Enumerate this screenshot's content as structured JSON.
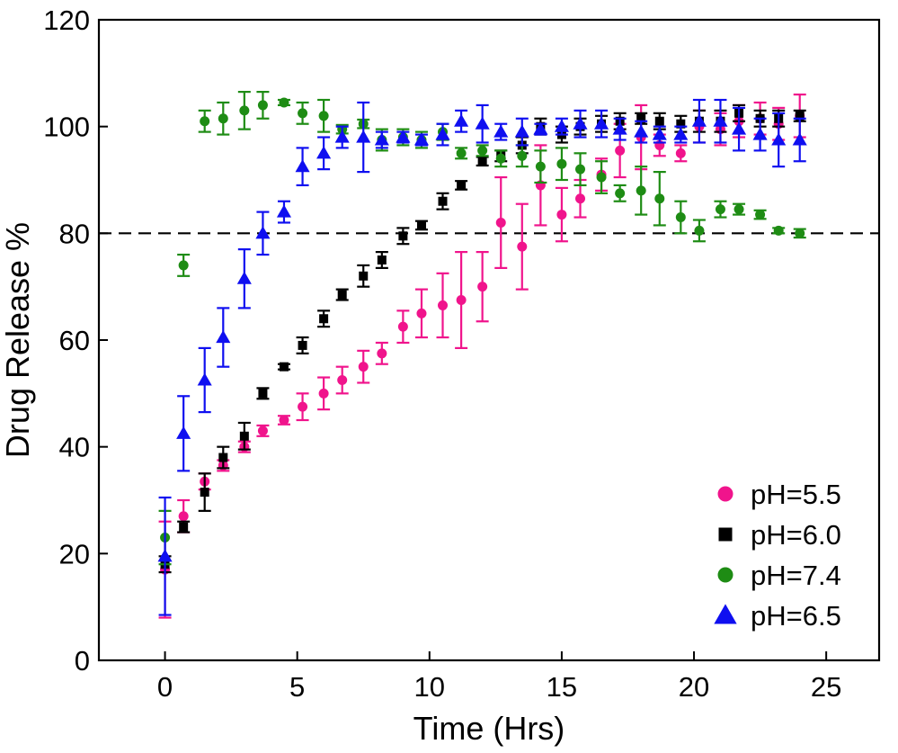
{
  "chart_data": {
    "type": "scatter",
    "xlabel": "Time (Hrs)",
    "ylabel": "Drug Release %",
    "xlim": [
      -2.5,
      27
    ],
    "ylim": [
      0,
      120
    ],
    "xticks": [
      0,
      5,
      10,
      15,
      20,
      25
    ],
    "yticks": [
      0,
      20,
      40,
      60,
      80,
      100,
      120
    ],
    "reference_line": {
      "y": 80,
      "style": "dashed",
      "color": "#000000"
    },
    "grid": false,
    "legend_position": "bottom-right",
    "series": [
      {
        "name": "pH=5.5",
        "marker": "circle",
        "color": "#f0148c",
        "points": [
          {
            "x": 0,
            "y": 17,
            "err": 9
          },
          {
            "x": 0.7,
            "y": 27,
            "err": 3
          },
          {
            "x": 1.5,
            "y": 33.5,
            "err": 1.5
          },
          {
            "x": 2.2,
            "y": 36.5,
            "err": 1
          },
          {
            "x": 3,
            "y": 40,
            "err": 1
          },
          {
            "x": 3.7,
            "y": 43,
            "err": 1
          },
          {
            "x": 4.5,
            "y": 45,
            "err": 0.8
          },
          {
            "x": 5.2,
            "y": 47.5,
            "err": 2.5
          },
          {
            "x": 6,
            "y": 50,
            "err": 3
          },
          {
            "x": 6.7,
            "y": 52.5,
            "err": 2.5
          },
          {
            "x": 7.5,
            "y": 55,
            "err": 3
          },
          {
            "x": 8.2,
            "y": 57.5,
            "err": 2
          },
          {
            "x": 9,
            "y": 62.5,
            "err": 3
          },
          {
            "x": 9.7,
            "y": 65,
            "err": 4.5
          },
          {
            "x": 10.5,
            "y": 66.5,
            "err": 6
          },
          {
            "x": 11.2,
            "y": 67.5,
            "err": 9
          },
          {
            "x": 12,
            "y": 70,
            "err": 6.5
          },
          {
            "x": 12.7,
            "y": 82,
            "err": 8.5
          },
          {
            "x": 13.5,
            "y": 77.5,
            "err": 8
          },
          {
            "x": 14.2,
            "y": 89,
            "err": 7.5
          },
          {
            "x": 15,
            "y": 83.5,
            "err": 5
          },
          {
            "x": 15.7,
            "y": 86.5,
            "err": 3.5
          },
          {
            "x": 16.5,
            "y": 91,
            "err": 3
          },
          {
            "x": 17.2,
            "y": 95.5,
            "err": 5
          },
          {
            "x": 18,
            "y": 98,
            "err": 6
          },
          {
            "x": 18.7,
            "y": 96.5,
            "err": 2
          },
          {
            "x": 19.5,
            "y": 95,
            "err": 1.5
          },
          {
            "x": 20.2,
            "y": 100,
            "err": 3
          },
          {
            "x": 21,
            "y": 99.5,
            "err": 3
          },
          {
            "x": 21.7,
            "y": 101,
            "err": 3
          },
          {
            "x": 22.5,
            "y": 101.5,
            "err": 3
          },
          {
            "x": 23.2,
            "y": 100.5,
            "err": 3
          },
          {
            "x": 24,
            "y": 102,
            "err": 4
          }
        ]
      },
      {
        "name": "pH=6.0",
        "marker": "square",
        "color": "#000000",
        "points": [
          {
            "x": 0,
            "y": 18,
            "err": 1.5
          },
          {
            "x": 0.7,
            "y": 25,
            "err": 1
          },
          {
            "x": 1.5,
            "y": 31.5,
            "err": 3.5
          },
          {
            "x": 2.2,
            "y": 38,
            "err": 2
          },
          {
            "x": 3,
            "y": 42,
            "err": 2.5
          },
          {
            "x": 3.7,
            "y": 50,
            "err": 1
          },
          {
            "x": 4.5,
            "y": 55,
            "err": 0.5
          },
          {
            "x": 5.2,
            "y": 59,
            "err": 1.5
          },
          {
            "x": 6,
            "y": 64,
            "err": 1.5
          },
          {
            "x": 6.7,
            "y": 68.5,
            "err": 1
          },
          {
            "x": 7.5,
            "y": 72,
            "err": 2
          },
          {
            "x": 8.2,
            "y": 75,
            "err": 1.5
          },
          {
            "x": 9,
            "y": 79.5,
            "err": 1.5
          },
          {
            "x": 9.7,
            "y": 81.5,
            "err": 0.8
          },
          {
            "x": 10.5,
            "y": 86,
            "err": 1.5
          },
          {
            "x": 11.2,
            "y": 89,
            "err": 0.8
          },
          {
            "x": 12,
            "y": 93.5,
            "err": 0.8
          },
          {
            "x": 12.7,
            "y": 94.5,
            "err": 1
          },
          {
            "x": 13.5,
            "y": 96.5,
            "err": 1.5
          },
          {
            "x": 14.2,
            "y": 100,
            "err": 1.5
          },
          {
            "x": 15,
            "y": 98.5,
            "err": 1.5
          },
          {
            "x": 15.7,
            "y": 100,
            "err": 1.5
          },
          {
            "x": 16.5,
            "y": 100.5,
            "err": 1.5
          },
          {
            "x": 17.2,
            "y": 101,
            "err": 1.5
          },
          {
            "x": 18,
            "y": 101.5,
            "err": 1
          },
          {
            "x": 18.7,
            "y": 101,
            "err": 1.5
          },
          {
            "x": 19.5,
            "y": 100.5,
            "err": 1.5
          },
          {
            "x": 20.2,
            "y": 101,
            "err": 2
          },
          {
            "x": 21,
            "y": 101,
            "err": 2
          },
          {
            "x": 21.7,
            "y": 102.5,
            "err": 1.5
          },
          {
            "x": 22.5,
            "y": 101.5,
            "err": 1.5
          },
          {
            "x": 23.2,
            "y": 101.5,
            "err": 1.5
          },
          {
            "x": 24,
            "y": 102,
            "err": 1
          }
        ]
      },
      {
        "name": "pH=7.4",
        "marker": "circle",
        "color": "#1e8c14",
        "points": [
          {
            "x": 0,
            "y": 23,
            "err": 5
          },
          {
            "x": 0.7,
            "y": 74,
            "err": 2
          },
          {
            "x": 1.5,
            "y": 101,
            "err": 2
          },
          {
            "x": 2.2,
            "y": 101.5,
            "err": 3
          },
          {
            "x": 3,
            "y": 103,
            "err": 3.5
          },
          {
            "x": 3.7,
            "y": 104,
            "err": 2.5
          },
          {
            "x": 4.5,
            "y": 104.5,
            "err": 0.5
          },
          {
            "x": 5.2,
            "y": 102.5,
            "err": 2
          },
          {
            "x": 6,
            "y": 102,
            "err": 3
          },
          {
            "x": 6.7,
            "y": 99.5,
            "err": 0.8
          },
          {
            "x": 7.5,
            "y": 100.5,
            "err": 0.8
          },
          {
            "x": 8.2,
            "y": 97.5,
            "err": 2
          },
          {
            "x": 9,
            "y": 98,
            "err": 1.5
          },
          {
            "x": 9.7,
            "y": 97.5,
            "err": 1.5
          },
          {
            "x": 10.5,
            "y": 99,
            "err": 1.5
          },
          {
            "x": 11.2,
            "y": 95,
            "err": 1
          },
          {
            "x": 12,
            "y": 95.5,
            "err": 1
          },
          {
            "x": 12.7,
            "y": 94,
            "err": 1.5
          },
          {
            "x": 13.5,
            "y": 94.5,
            "err": 2
          },
          {
            "x": 14.2,
            "y": 92.5,
            "err": 3
          },
          {
            "x": 15,
            "y": 93,
            "err": 3
          },
          {
            "x": 15.7,
            "y": 92,
            "err": 3
          },
          {
            "x": 16.5,
            "y": 90.5,
            "err": 3
          },
          {
            "x": 17.2,
            "y": 87.5,
            "err": 1.5
          },
          {
            "x": 18,
            "y": 88,
            "err": 4.5
          },
          {
            "x": 18.7,
            "y": 86.5,
            "err": 5
          },
          {
            "x": 19.5,
            "y": 83,
            "err": 3
          },
          {
            "x": 20.2,
            "y": 80.5,
            "err": 2
          },
          {
            "x": 21,
            "y": 84.5,
            "err": 1.5
          },
          {
            "x": 21.7,
            "y": 84.5,
            "err": 1
          },
          {
            "x": 22.5,
            "y": 83.5,
            "err": 0.8
          },
          {
            "x": 23.2,
            "y": 80.5,
            "err": 0.5
          },
          {
            "x": 24,
            "y": 80,
            "err": 0.8
          }
        ]
      },
      {
        "name": "pH=6.5",
        "marker": "triangle",
        "color": "#0f0ff0",
        "points": [
          {
            "x": 0,
            "y": 19.5,
            "err": 11
          },
          {
            "x": 0.7,
            "y": 42.5,
            "err": 7
          },
          {
            "x": 1.5,
            "y": 52.5,
            "err": 6
          },
          {
            "x": 2.2,
            "y": 60.5,
            "err": 5.5
          },
          {
            "x": 3,
            "y": 71.5,
            "err": 5.5
          },
          {
            "x": 3.7,
            "y": 80,
            "err": 4
          },
          {
            "x": 4.5,
            "y": 84,
            "err": 2
          },
          {
            "x": 5.2,
            "y": 92.5,
            "err": 3.5
          },
          {
            "x": 6,
            "y": 95,
            "err": 3
          },
          {
            "x": 6.7,
            "y": 98,
            "err": 2
          },
          {
            "x": 7.5,
            "y": 98,
            "err": 6.5
          },
          {
            "x": 8.2,
            "y": 97.5,
            "err": 1.5
          },
          {
            "x": 9,
            "y": 98,
            "err": 1
          },
          {
            "x": 9.7,
            "y": 97.5,
            "err": 1
          },
          {
            "x": 10.5,
            "y": 98.5,
            "err": 2
          },
          {
            "x": 11.2,
            "y": 101,
            "err": 2
          },
          {
            "x": 12,
            "y": 100.5,
            "err": 3.5
          },
          {
            "x": 12.7,
            "y": 99,
            "err": 1.5
          },
          {
            "x": 13.5,
            "y": 99,
            "err": 2.5
          },
          {
            "x": 14.2,
            "y": 99.5,
            "err": 1
          },
          {
            "x": 15,
            "y": 100,
            "err": 1.5
          },
          {
            "x": 15.7,
            "y": 100.5,
            "err": 2.5
          },
          {
            "x": 16.5,
            "y": 100.5,
            "err": 2.5
          },
          {
            "x": 17.2,
            "y": 99.5,
            "err": 2
          },
          {
            "x": 18,
            "y": 99,
            "err": 2
          },
          {
            "x": 18.7,
            "y": 98.5,
            "err": 1.5
          },
          {
            "x": 19.5,
            "y": 98.5,
            "err": 1.5
          },
          {
            "x": 20.2,
            "y": 101,
            "err": 4
          },
          {
            "x": 21,
            "y": 101,
            "err": 4
          },
          {
            "x": 21.7,
            "y": 99.5,
            "err": 4
          },
          {
            "x": 22.5,
            "y": 98.5,
            "err": 3
          },
          {
            "x": 23.2,
            "y": 97.5,
            "err": 5
          },
          {
            "x": 24,
            "y": 97.5,
            "err": 4
          }
        ]
      }
    ]
  }
}
